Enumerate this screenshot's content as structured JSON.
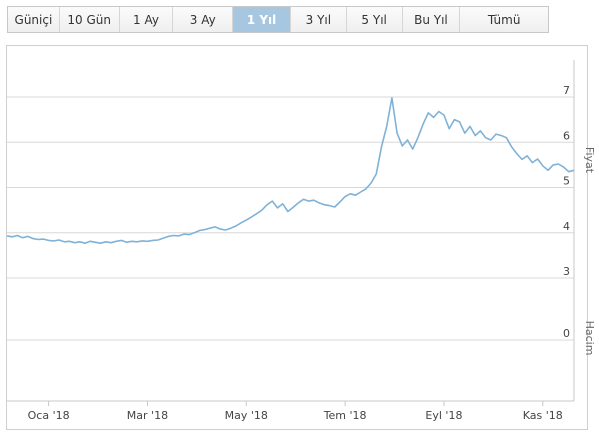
{
  "range_selector": {
    "buttons": [
      "Güniçi",
      "10 Gün",
      "1 Ay",
      "3 Ay",
      "1 Yıl",
      "3 Yıl",
      "5 Yıl",
      "Bu Yıl",
      "Tümü"
    ],
    "active": "1 Yıl"
  },
  "colors": {
    "line": "#7fb2d6",
    "grid": "#d8d8d8",
    "active_button": "#a7c6e0"
  },
  "chart_data": {
    "type": "line",
    "title": "",
    "series": [
      {
        "values": [
          [
            0,
            3.93
          ],
          [
            1,
            3.91
          ],
          [
            2,
            3.94
          ],
          [
            3,
            3.89
          ],
          [
            4,
            3.92
          ],
          [
            5,
            3.87
          ],
          [
            6,
            3.85
          ],
          [
            7,
            3.86
          ],
          [
            8,
            3.83
          ],
          [
            9,
            3.82
          ],
          [
            10,
            3.84
          ],
          [
            11,
            3.8
          ],
          [
            12,
            3.81
          ],
          [
            13,
            3.78
          ],
          [
            14,
            3.8
          ],
          [
            15,
            3.77
          ],
          [
            16,
            3.81
          ],
          [
            17,
            3.79
          ],
          [
            18,
            3.77
          ],
          [
            19,
            3.8
          ],
          [
            20,
            3.78
          ],
          [
            21,
            3.81
          ],
          [
            22,
            3.83
          ],
          [
            23,
            3.79
          ],
          [
            24,
            3.81
          ],
          [
            25,
            3.8
          ],
          [
            26,
            3.82
          ],
          [
            27,
            3.81
          ],
          [
            28,
            3.83
          ],
          [
            29,
            3.84
          ],
          [
            30,
            3.88
          ],
          [
            31,
            3.92
          ],
          [
            32,
            3.94
          ],
          [
            33,
            3.93
          ],
          [
            34,
            3.97
          ],
          [
            35,
            3.96
          ],
          [
            36,
            4.0
          ],
          [
            37,
            4.05
          ],
          [
            38,
            4.07
          ],
          [
            39,
            4.1
          ],
          [
            40,
            4.13
          ],
          [
            41,
            4.08
          ],
          [
            42,
            4.06
          ],
          [
            43,
            4.1
          ],
          [
            44,
            4.15
          ],
          [
            45,
            4.22
          ],
          [
            46,
            4.28
          ],
          [
            47,
            4.35
          ],
          [
            48,
            4.42
          ],
          [
            49,
            4.5
          ],
          [
            50,
            4.62
          ],
          [
            51,
            4.7
          ],
          [
            52,
            4.55
          ],
          [
            53,
            4.64
          ],
          [
            54,
            4.47
          ],
          [
            55,
            4.56
          ],
          [
            56,
            4.66
          ],
          [
            57,
            4.74
          ],
          [
            58,
            4.7
          ],
          [
            59,
            4.72
          ],
          [
            60,
            4.66
          ],
          [
            61,
            4.62
          ],
          [
            62,
            4.6
          ],
          [
            63,
            4.57
          ],
          [
            64,
            4.68
          ],
          [
            65,
            4.8
          ],
          [
            66,
            4.86
          ],
          [
            67,
            4.83
          ],
          [
            68,
            4.9
          ],
          [
            69,
            4.97
          ],
          [
            70,
            5.1
          ],
          [
            71,
            5.3
          ],
          [
            72,
            5.9
          ],
          [
            73,
            6.35
          ],
          [
            74,
            6.98
          ],
          [
            75,
            6.2
          ],
          [
            76,
            5.92
          ],
          [
            77,
            6.05
          ],
          [
            78,
            5.85
          ],
          [
            79,
            6.1
          ],
          [
            80,
            6.4
          ],
          [
            81,
            6.65
          ],
          [
            82,
            6.55
          ],
          [
            83,
            6.68
          ],
          [
            84,
            6.6
          ],
          [
            85,
            6.3
          ],
          [
            86,
            6.5
          ],
          [
            87,
            6.45
          ],
          [
            88,
            6.2
          ],
          [
            89,
            6.35
          ],
          [
            90,
            6.15
          ],
          [
            91,
            6.25
          ],
          [
            92,
            6.1
          ],
          [
            93,
            6.05
          ],
          [
            94,
            6.18
          ],
          [
            95,
            6.15
          ],
          [
            96,
            6.1
          ],
          [
            97,
            5.9
          ],
          [
            98,
            5.75
          ],
          [
            99,
            5.62
          ],
          [
            100,
            5.7
          ],
          [
            101,
            5.55
          ],
          [
            102,
            5.63
          ],
          [
            103,
            5.48
          ],
          [
            104,
            5.38
          ],
          [
            105,
            5.5
          ],
          [
            106,
            5.52
          ],
          [
            107,
            5.45
          ],
          [
            108,
            5.35
          ],
          [
            109,
            5.38
          ]
        ]
      }
    ],
    "x_tick_labels": [
      {
        "at": 8,
        "label": "Oca '18"
      },
      {
        "at": 27,
        "label": "Mar '18"
      },
      {
        "at": 46,
        "label": "May '18"
      },
      {
        "at": 65,
        "label": "Tem '18"
      },
      {
        "at": 84,
        "label": "Eyl '18"
      },
      {
        "at": 103,
        "label": "Kas '18"
      }
    ],
    "xlim": [
      0,
      109
    ],
    "y_axis_price": {
      "title": "Fiyat",
      "ticks": [
        3,
        4,
        5,
        6,
        7
      ],
      "ylim": [
        2.93,
        7.15
      ]
    },
    "y_axis_volume": {
      "title": "Hacim",
      "ticks": [
        0
      ]
    },
    "grid": true
  }
}
